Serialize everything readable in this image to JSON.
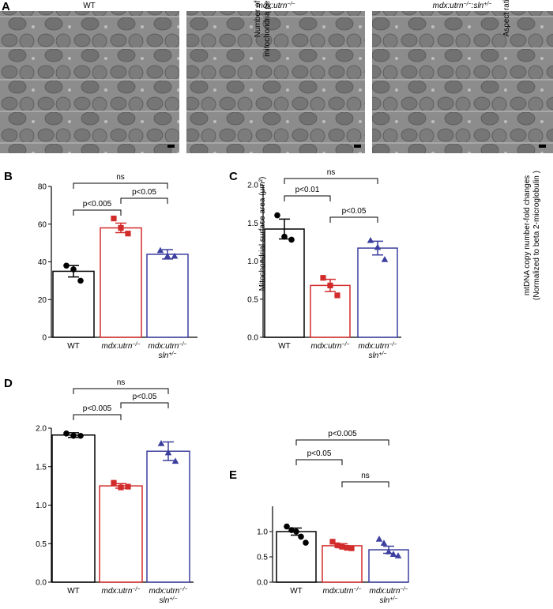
{
  "panel_a": {
    "panel": "A",
    "titles": [
      "WT",
      "mdx:utrn−/−",
      "mdx:utrn−/−:sln+/−"
    ]
  },
  "chart_data": [
    {
      "type": "bar",
      "panel": "B",
      "ylabel": "Number of\nmitochondria per field",
      "categories": [
        "WT",
        "mdx:utrn−/−",
        "mdx:utrn−/−\nsln+/−"
      ],
      "colors": [
        "#000000",
        "#d22b2b",
        "#3c3f9e"
      ],
      "markers": [
        "circle",
        "square",
        "triangle"
      ],
      "values": [
        35,
        58,
        44
      ],
      "errors": [
        3,
        2.5,
        2.5
      ],
      "points": [
        [
          38,
          36,
          30
        ],
        [
          63,
          58,
          55
        ],
        [
          46,
          43,
          43
        ]
      ],
      "ylim": [
        0,
        80
      ],
      "yticks": [
        0,
        20,
        40,
        60,
        80
      ],
      "comparisons": [
        "ns",
        "p<0.05",
        "p<0.005"
      ]
    },
    {
      "type": "bar",
      "panel": "C",
      "ylabel": "Mitochondrial  surface area (μm²)",
      "categories": [
        "WT",
        "mdx:utrn−/−",
        "mdx:utrn−/−\nsln+/−"
      ],
      "colors": [
        "#000000",
        "#d22b2b",
        "#3c3f9e"
      ],
      "markers": [
        "circle",
        "square",
        "triangle"
      ],
      "values": [
        1.42,
        0.68,
        1.17
      ],
      "errors": [
        0.13,
        0.08,
        0.09
      ],
      "points": [
        [
          1.6,
          1.32,
          1.28
        ],
        [
          0.78,
          0.68,
          0.55
        ],
        [
          1.27,
          1.18,
          1.02
        ]
      ],
      "ylim": [
        0,
        2
      ],
      "yticks": [
        {
          "value": 0,
          "label": "0.0"
        },
        0.5,
        {
          "value": 1,
          "label": "1.0"
        },
        1.5,
        {
          "value": 2,
          "label": "2.0"
        }
      ],
      "comparisons": [
        "ns",
        "p<0.01",
        "p<0.05"
      ]
    },
    {
      "type": "bar",
      "panel": "D",
      "ylabel": "Aspect ratio",
      "categories": [
        "WT",
        "mdx:utrn−/−",
        "mdx:utrn−/−\nsln+/−"
      ],
      "colors": [
        "#000000",
        "#d22b2b",
        "#3c3f9e"
      ],
      "markers": [
        "circle",
        "square",
        "triangle"
      ],
      "values": [
        1.91,
        1.25,
        1.7
      ],
      "errors": [
        0.03,
        0.03,
        0.12
      ],
      "points": [
        [
          1.93,
          1.9,
          1.9
        ],
        [
          1.29,
          1.23,
          1.24
        ],
        [
          1.8,
          1.68,
          1.57
        ]
      ],
      "ylim": [
        0,
        2
      ],
      "yticks": [
        {
          "value": 0,
          "label": "0.0"
        },
        0.5,
        {
          "value": 1,
          "label": "1.0"
        },
        1.5,
        {
          "value": 2,
          "label": "2.0"
        }
      ],
      "comparisons": [
        "ns",
        "p<0.005",
        "p<0.05"
      ]
    },
    {
      "type": "bar",
      "panel": "E",
      "ylabel": "mtDNA copy number-fold changes\n(Normalized to beta 2-microglobulin )",
      "categories": [
        "WT",
        "mdx:utrn−/−",
        "mdx:utrn−/−\nsln+/−"
      ],
      "colors": [
        "#000000",
        "#d22b2b",
        "#3c3f9e"
      ],
      "markers": [
        "circle",
        "square",
        "triangle"
      ],
      "values": [
        1.0,
        0.72,
        0.64
      ],
      "errors": [
        0.07,
        0.04,
        0.07
      ],
      "points": [
        [
          1.1,
          1.03,
          1.0,
          0.9,
          0.78
        ],
        [
          0.8,
          0.73,
          0.7,
          0.68,
          0.67
        ],
        [
          0.85,
          0.77,
          0.6,
          0.55,
          0.52
        ]
      ],
      "ylim": [
        0,
        1.5
      ],
      "yticks": [
        {
          "value": 0,
          "label": "0.0"
        },
        0.5,
        {
          "value": 1,
          "label": "1.0"
        }
      ],
      "comparisons": [
        "p<0.005",
        "p<0.05",
        "ns"
      ]
    }
  ]
}
